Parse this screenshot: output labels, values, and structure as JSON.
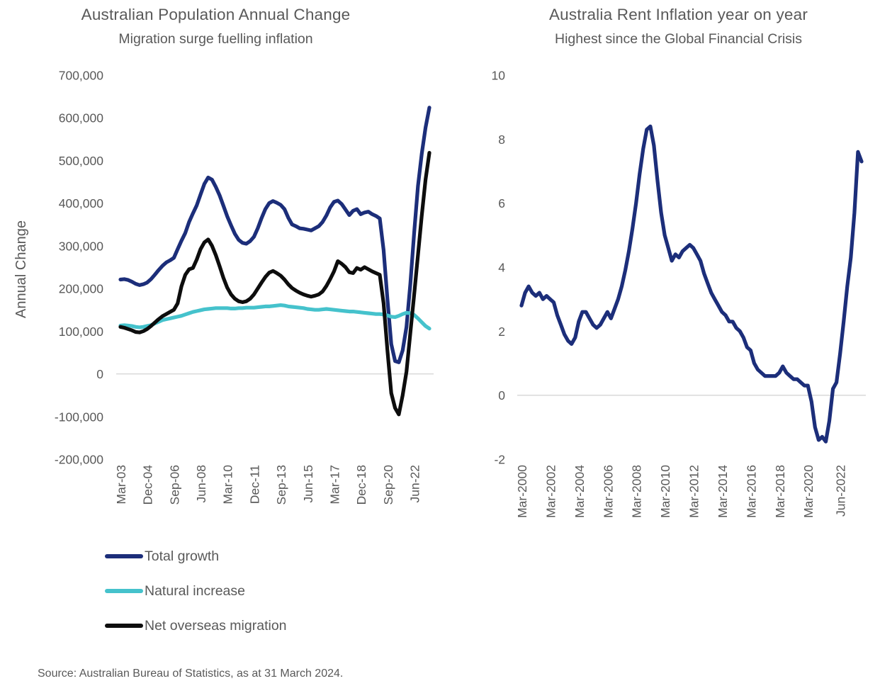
{
  "source": "Source: Australian Bureau of Statistics, as at 31 March 2024.",
  "colors": {
    "text": "#595959",
    "grid": "#d9d9d9",
    "navy": "#1c2e7a",
    "cyan": "#45c2cc",
    "black": "#0d0d0d"
  },
  "chart_data": [
    {
      "type": "line",
      "title": "Australian Population Annual Change",
      "subtitle": "Migration surge fuelling inflation",
      "ylabel": "Annual Change",
      "x_start": "Mar-2003",
      "x_end": "Jun-2023",
      "frequency": "quarterly",
      "ylim": [
        -200000,
        700000
      ],
      "grid": "zero-line-only",
      "legend_position": "bottom-left",
      "zero_line": true,
      "y_tick_values": [
        700000,
        600000,
        500000,
        400000,
        300000,
        200000,
        100000,
        0,
        -100000,
        -200000
      ],
      "y_tick_labels": [
        "700,000",
        "600,000",
        "500,000",
        "400,000",
        "300,000",
        "200,000",
        "100,000",
        "0",
        "-100,000",
        "-200,000"
      ],
      "x_tick_indices": [
        0,
        7,
        14,
        21,
        28,
        35,
        42,
        49,
        56,
        63,
        70,
        77
      ],
      "x_tick_labels": [
        "Mar-03",
        "Dec-04",
        "Sep-06",
        "Jun-08",
        "Mar-10",
        "Dec-11",
        "Sep-13",
        "Jun-15",
        "Mar-17",
        "Dec-18",
        "Sep-20",
        "Jun-22"
      ],
      "series": [
        {
          "name": "Total growth",
          "color": "#1c2e7a",
          "values": [
            221000,
            222000,
            220000,
            216000,
            211000,
            208000,
            210000,
            214000,
            222000,
            232000,
            243000,
            253000,
            261000,
            266000,
            272000,
            292000,
            312000,
            330000,
            356000,
            376000,
            395000,
            420000,
            445000,
            460000,
            455000,
            438000,
            418000,
            394000,
            369000,
            348000,
            328000,
            314000,
            307000,
            305000,
            311000,
            321000,
            341000,
            365000,
            386000,
            400000,
            405000,
            401000,
            396000,
            386000,
            366000,
            350000,
            346000,
            341000,
            340000,
            338000,
            336000,
            341000,
            346000,
            356000,
            371000,
            390000,
            403000,
            406000,
            398000,
            385000,
            372000,
            382000,
            386000,
            374000,
            378000,
            380000,
            374000,
            370000,
            364000,
            290000,
            175000,
            70000,
            30000,
            27000,
            55000,
            110000,
            210000,
            330000,
            440000,
            515000,
            577000,
            624000
          ]
        },
        {
          "name": "Natural increase",
          "color": "#45c2cc",
          "values": [
            113000,
            114000,
            113000,
            112000,
            110000,
            109000,
            110000,
            112000,
            114000,
            118000,
            122000,
            126000,
            128000,
            130000,
            132000,
            134000,
            136000,
            139000,
            142000,
            145000,
            147000,
            149000,
            151000,
            152000,
            153000,
            154000,
            154000,
            154000,
            154000,
            153000,
            153000,
            154000,
            154000,
            155000,
            155000,
            155000,
            156000,
            157000,
            158000,
            158000,
            159000,
            160000,
            161000,
            160000,
            158000,
            157000,
            156000,
            155000,
            154000,
            152000,
            151000,
            150000,
            150000,
            151000,
            152000,
            151000,
            150000,
            149000,
            148000,
            147000,
            146000,
            146000,
            145000,
            144000,
            143000,
            142000,
            141000,
            140000,
            140000,
            139000,
            137000,
            134000,
            133000,
            136000,
            140000,
            143000,
            142000,
            138000,
            130000,
            121000,
            112000,
            106000
          ]
        },
        {
          "name": "Net overseas migration",
          "color": "#0d0d0d",
          "values": [
            110000,
            108000,
            105000,
            102000,
            98000,
            97000,
            100000,
            105000,
            112000,
            120000,
            128000,
            135000,
            140000,
            145000,
            150000,
            165000,
            205000,
            232000,
            245000,
            248000,
            268000,
            292000,
            308000,
            315000,
            300000,
            278000,
            252000,
            225000,
            202000,
            186000,
            176000,
            170000,
            168000,
            170000,
            176000,
            186000,
            200000,
            214000,
            227000,
            237000,
            241000,
            236000,
            230000,
            221000,
            210000,
            201000,
            195000,
            190000,
            186000,
            183000,
            181000,
            183000,
            186000,
            193000,
            206000,
            222000,
            240000,
            264000,
            258000,
            250000,
            238000,
            236000,
            248000,
            244000,
            250000,
            245000,
            240000,
            236000,
            232000,
            165000,
            55000,
            -45000,
            -80000,
            -95000,
            -50000,
            5000,
            95000,
            185000,
            278000,
            370000,
            455000,
            518000
          ]
        }
      ]
    },
    {
      "type": "line",
      "title": "Australia Rent Inflation year on year",
      "subtitle": "Highest since the Global Financial Crisis",
      "ylabel": "",
      "x_start": "Mar-2000",
      "x_end": "Dec-2023",
      "frequency": "quarterly",
      "ylim": [
        -2,
        10
      ],
      "grid": "zero-line-only",
      "zero_line": true,
      "y_tick_values": [
        10,
        8,
        6,
        4,
        2,
        0,
        -2
      ],
      "y_tick_labels": [
        "10",
        "8",
        "6",
        "4",
        "2",
        "0",
        "-2"
      ],
      "x_tick_indices": [
        0,
        8,
        16,
        24,
        32,
        40,
        48,
        56,
        64,
        72,
        80,
        89
      ],
      "x_tick_labels": [
        "Mar-2000",
        "Mar-2002",
        "Mar-2004",
        "Mar-2006",
        "Mar-2008",
        "Mar-2010",
        "Mar-2012",
        "Mar-2014",
        "Mar-2016",
        "Mar-2018",
        "Mar-2020",
        "Jun-2022"
      ],
      "series": [
        {
          "name": "Rent inflation (% year on year)",
          "color": "#1c2e7a",
          "values": [
            2.8,
            3.2,
            3.4,
            3.2,
            3.1,
            3.2,
            3.0,
            3.1,
            3.0,
            2.9,
            2.5,
            2.2,
            1.9,
            1.7,
            1.6,
            1.8,
            2.3,
            2.6,
            2.6,
            2.4,
            2.2,
            2.1,
            2.2,
            2.4,
            2.6,
            2.4,
            2.7,
            3.0,
            3.4,
            3.9,
            4.5,
            5.2,
            6.0,
            6.9,
            7.7,
            8.3,
            8.4,
            7.8,
            6.7,
            5.7,
            5.0,
            4.6,
            4.2,
            4.4,
            4.3,
            4.5,
            4.6,
            4.7,
            4.6,
            4.4,
            4.2,
            3.8,
            3.5,
            3.2,
            3.0,
            2.8,
            2.6,
            2.5,
            2.3,
            2.3,
            2.1,
            2.0,
            1.8,
            1.5,
            1.4,
            1.0,
            0.8,
            0.7,
            0.6,
            0.6,
            0.6,
            0.6,
            0.7,
            0.9,
            0.7,
            0.6,
            0.5,
            0.5,
            0.4,
            0.3,
            0.3,
            -0.2,
            -1.0,
            -1.4,
            -1.3,
            -1.45,
            -0.8,
            0.2,
            0.4,
            1.3,
            2.3,
            3.4,
            4.3,
            5.7,
            7.6,
            7.3
          ]
        }
      ]
    }
  ]
}
